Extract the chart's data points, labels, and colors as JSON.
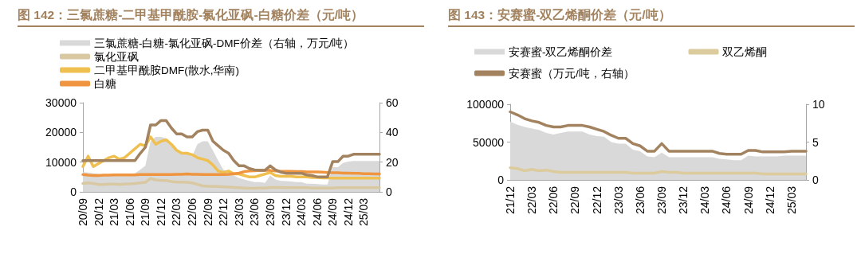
{
  "chart_data": [
    {
      "type": "line",
      "title": "图 142：三氯蔗糖-二甲基甲酰胺-氯化亚砜-白糖价差（元/吨）",
      "legend": "top",
      "categories": [
        "20/09",
        null,
        null,
        "20/12",
        null,
        null,
        "21/03",
        null,
        null,
        "21/06",
        null,
        null,
        "21/09",
        null,
        null,
        "21/12",
        null,
        null,
        "22/03",
        null,
        null,
        "22/06",
        null,
        null,
        "22/09",
        null,
        null,
        "22/12",
        null,
        null,
        "23/03",
        null,
        null,
        "23/06",
        null,
        null,
        "23/09",
        null,
        null,
        "23/12",
        null,
        null,
        "24/03",
        null,
        null,
        "24/06",
        null,
        null,
        "24/09",
        null,
        null,
        "24/12",
        null,
        null,
        "25/03",
        null,
        null,
        null
      ],
      "ylim": [
        0,
        30000
      ],
      "yticks": [
        0,
        10000,
        20000,
        30000
      ],
      "y2lim": [
        0,
        60
      ],
      "y2ticks": [
        0,
        20,
        40,
        60
      ],
      "series": [
        {
          "name": "三氯蔗糖-白糖-氯化亚砜-DMF价差（右轴，万元/吨）",
          "type": "area",
          "axis": "y2",
          "color": "#d9d9d9",
          "values": [
            13.3,
            13,
            12.5,
            12,
            11.5,
            11,
            11,
            11,
            11.5,
            12,
            12.5,
            14.8,
            17.5,
            34,
            37,
            37,
            36,
            32,
            27.7,
            26.8,
            26,
            24,
            32,
            34,
            34,
            27.7,
            21,
            14.8,
            13.8,
            11,
            9.2,
            8.3,
            7.4,
            6.5,
            6.5,
            6,
            11,
            8.3,
            7.4,
            7.2,
            7,
            6.5,
            6.5,
            5.5,
            5.5,
            5.2,
            5,
            5,
            16.6,
            16.6,
            19.4,
            20.3,
            20.7,
            20.7,
            20.7,
            20.7,
            20.7,
            20.7
          ]
        },
        {
          "name": "氯化亚砜",
          "type": "line",
          "color": "#d9c9a3",
          "values": [
            2800,
            3000,
            2800,
            2500,
            2500,
            2600,
            2600,
            2500,
            2600,
            2700,
            2800,
            3000,
            3200,
            4500,
            4000,
            3800,
            3800,
            3500,
            3300,
            3300,
            3200,
            3000,
            2500,
            2000,
            1900,
            1800,
            1800,
            1700,
            1600,
            1500,
            1400,
            1300,
            1200,
            1200,
            1300,
            1300,
            1500,
            1500,
            1500,
            1400,
            1400,
            1400,
            1400,
            1400,
            1300,
            1300,
            1300,
            1300,
            1300,
            1400,
            1400,
            1400,
            1400,
            1400,
            1400,
            1400,
            1400,
            1400
          ]
        },
        {
          "name": "二甲基甲酰胺DMF(散水,华南)",
          "type": "line",
          "color": "#efc050",
          "values": [
            8500,
            12000,
            8500,
            9500,
            10500,
            11500,
            12000,
            11000,
            11500,
            13000,
            14500,
            16000,
            15500,
            18500,
            16000,
            17000,
            17500,
            16000,
            14000,
            13000,
            13000,
            12500,
            11500,
            11000,
            10500,
            9000,
            7000,
            6500,
            7000,
            6000,
            6000,
            5500,
            5000,
            5000,
            5500,
            6000,
            6500,
            5500,
            5200,
            5200,
            5200,
            5000,
            5000,
            5000,
            4800,
            4800,
            4700,
            4700,
            4600,
            4600,
            4600,
            4600,
            4600,
            4600,
            4600,
            4600,
            4600,
            4600
          ]
        },
        {
          "name": "白糖",
          "type": "line",
          "color": "#ef9540",
          "values": [
            5800,
            5600,
            5500,
            5500,
            5600,
            5600,
            5700,
            5700,
            5700,
            5700,
            5700,
            5800,
            5800,
            5800,
            5800,
            5800,
            5800,
            5800,
            5900,
            5900,
            6000,
            5900,
            5900,
            5800,
            5800,
            5800,
            5800,
            5800,
            5900,
            6100,
            6300,
            6800,
            7000,
            7100,
            7200,
            7200,
            7200,
            7000,
            6900,
            6900,
            6900,
            6800,
            6800,
            6700,
            6700,
            6700,
            6600,
            6500,
            6400,
            6400,
            6300,
            6300,
            6200,
            6200,
            6100,
            6100,
            6000,
            6000
          ]
        },
        {
          "type": "line",
          "axis": "y2",
          "color": "#a3835f",
          "values": [
            21,
            21,
            21,
            21,
            21,
            21,
            21,
            21,
            21,
            21,
            21,
            25.8,
            30,
            45,
            45,
            48,
            48,
            43,
            39,
            39,
            37,
            37,
            40.5,
            41.5,
            41.5,
            34,
            31,
            28,
            26,
            21,
            17.5,
            17.5,
            15.7,
            14.8,
            14.5,
            14.5,
            17.5,
            14.8,
            13.3,
            12.5,
            12.5,
            12.5,
            12.5,
            11.4,
            11,
            10.1,
            10.1,
            10,
            20.3,
            20.3,
            24,
            24,
            25.3,
            25.3,
            25.3,
            25.3,
            25.3,
            25.3
          ]
        }
      ]
    },
    {
      "type": "line",
      "title": "图 143：安赛蜜-双乙烯酮价差（元/吨）",
      "legend": "top",
      "categories": [
        "21/12",
        null,
        null,
        "22/03",
        null,
        null,
        "22/06",
        null,
        null,
        "22/09",
        null,
        null,
        "22/12",
        null,
        null,
        "23/03",
        null,
        null,
        "23/06",
        null,
        null,
        "23/09",
        null,
        null,
        "23/12",
        null,
        null,
        "24/03",
        null,
        null,
        "24/06",
        null,
        null,
        "24/09",
        null,
        null,
        "24/12",
        null,
        null,
        "25/03",
        null,
        null
      ],
      "ylim": [
        0,
        100000
      ],
      "yticks": [
        0,
        50000,
        100000
      ],
      "y2lim": [
        0,
        10
      ],
      "y2ticks": [
        0,
        5,
        10
      ],
      "series": [
        {
          "name": "安赛蜜-双乙烯酮价差",
          "type": "area",
          "color": "#d9d9d9",
          "values": [
            77000,
            73000,
            70000,
            68000,
            66000,
            62000,
            60000,
            62000,
            64000,
            64000,
            64000,
            60000,
            58000,
            57000,
            50000,
            48000,
            48000,
            40000,
            38000,
            31000,
            30000,
            36000,
            30000,
            30000,
            30000,
            30000,
            30000,
            30000,
            30000,
            28000,
            27000,
            26000,
            26000,
            32000,
            31000,
            31000,
            31000,
            31000,
            32000,
            32000,
            32000,
            32000
          ]
        },
        {
          "name": "双乙烯酮",
          "type": "line",
          "color": "#dccb9d",
          "values": [
            16000,
            15000,
            12000,
            14000,
            12000,
            13000,
            11000,
            10000,
            10000,
            10000,
            10000,
            10000,
            10000,
            10000,
            10000,
            10000,
            10000,
            9000,
            9000,
            9000,
            9000,
            11000,
            10000,
            10000,
            9000,
            9000,
            9000,
            9000,
            9000,
            9000,
            9000,
            9000,
            9000,
            9000,
            9000,
            8000,
            8000,
            8000,
            8000,
            8000,
            8000,
            8000
          ]
        },
        {
          "name": "安赛蜜（万元/吨，右轴）",
          "type": "line",
          "axis": "y2",
          "color": "#a3835f",
          "values": [
            9.0,
            8.6,
            8.1,
            7.8,
            7.6,
            7.2,
            7.0,
            7.0,
            7.2,
            7.2,
            7.2,
            7.0,
            6.7,
            6.4,
            5.9,
            5.5,
            5.5,
            4.8,
            4.5,
            3.8,
            3.8,
            4.8,
            3.8,
            3.8,
            3.8,
            3.8,
            3.8,
            3.8,
            3.8,
            3.5,
            3.4,
            3.4,
            3.4,
            3.9,
            3.9,
            3.7,
            3.7,
            3.7,
            3.7,
            3.8,
            3.8,
            3.8
          ]
        }
      ]
    }
  ]
}
